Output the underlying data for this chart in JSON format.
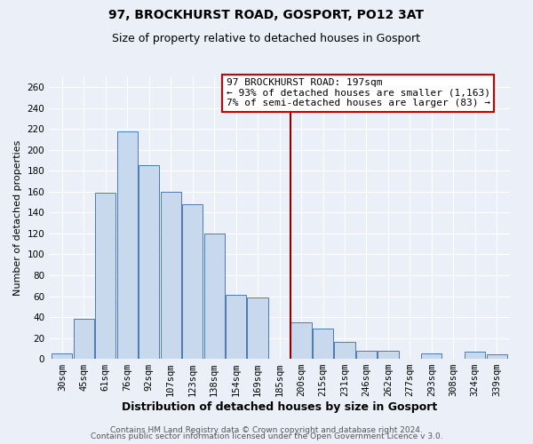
{
  "title": "97, BROCKHURST ROAD, GOSPORT, PO12 3AT",
  "subtitle": "Size of property relative to detached houses in Gosport",
  "xlabel": "Distribution of detached houses by size in Gosport",
  "ylabel": "Number of detached properties",
  "bar_labels": [
    "30sqm",
    "45sqm",
    "61sqm",
    "76sqm",
    "92sqm",
    "107sqm",
    "123sqm",
    "138sqm",
    "154sqm",
    "169sqm",
    "185sqm",
    "200sqm",
    "215sqm",
    "231sqm",
    "246sqm",
    "262sqm",
    "277sqm",
    "293sqm",
    "308sqm",
    "324sqm",
    "339sqm"
  ],
  "bar_values": [
    5,
    38,
    159,
    218,
    185,
    160,
    148,
    120,
    61,
    59,
    0,
    35,
    29,
    16,
    8,
    8,
    0,
    5,
    0,
    7,
    4
  ],
  "bar_color": "#c8d9ee",
  "bar_edge_color": "#4a7ab5",
  "vline_index": 11,
  "vline_color": "#8b0000",
  "annotation_line1": "97 BROCKHURST ROAD: 197sqm",
  "annotation_line2": "← 93% of detached houses are smaller (1,163)",
  "annotation_line3": "7% of semi-detached houses are larger (83) →",
  "ylim": [
    0,
    270
  ],
  "yticks": [
    0,
    20,
    40,
    60,
    80,
    100,
    120,
    140,
    160,
    180,
    200,
    220,
    240,
    260
  ],
  "footer1": "Contains HM Land Registry data © Crown copyright and database right 2024.",
  "footer2": "Contains public sector information licensed under the Open Government Licence v 3.0.",
  "bg_color": "#eaeff8",
  "grid_color": "#ffffff",
  "title_fontsize": 10,
  "subtitle_fontsize": 9,
  "xlabel_fontsize": 9,
  "ylabel_fontsize": 8,
  "tick_fontsize": 7.5,
  "annotation_fontsize": 8,
  "footer_fontsize": 6.5
}
